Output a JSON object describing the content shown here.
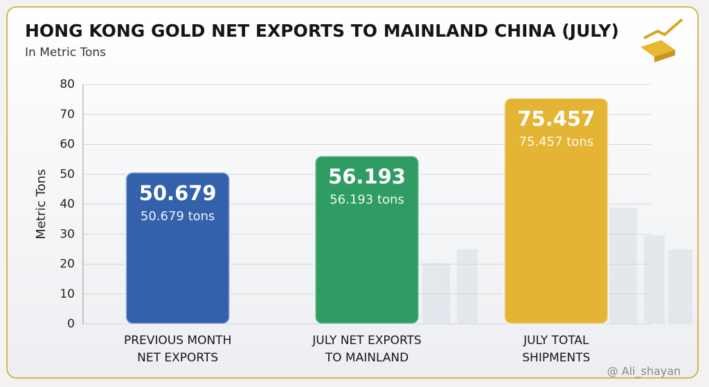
{
  "chart_data": {
    "type": "bar",
    "title": "HONG KONG GOLD NET EXPORTS TO MAINLAND CHINA (JULY)",
    "subtitle": "In Metric Tons",
    "y_label": "Metric Tons",
    "categories": [
      [
        "PREVIOUS MONTH",
        "NET EXPORTS"
      ],
      [
        "JULY NET EXPORTS",
        "TO MAINLAND"
      ],
      [
        "JULY TOTAL",
        "SHIPMENTS"
      ]
    ],
    "values": [
      50.679,
      56.193,
      75.457
    ],
    "value_labels": [
      "50.679 tons",
      "56.193 tons",
      "75.457 tons"
    ],
    "colors": [
      "#3461ab",
      "#2f9c63",
      "#e4b435"
    ],
    "ylim": [
      0,
      80
    ],
    "yticks": [
      0,
      10,
      20,
      30,
      40,
      50,
      60,
      70,
      80
    ],
    "grid": true,
    "watermark": "@ Ali_shayan"
  }
}
